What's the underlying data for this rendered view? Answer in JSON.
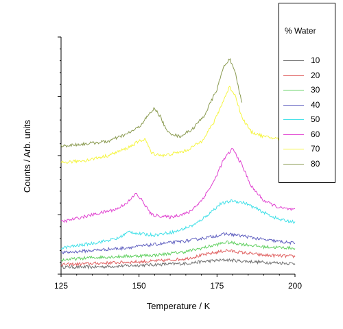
{
  "chart_data": {
    "type": "line",
    "xlabel": "Temperature / K",
    "ylabel": "Counts / Arb. units",
    "xlim": [
      125,
      200
    ],
    "ylim": [
      0,
      100
    ],
    "xticks": [
      125,
      150,
      175,
      200
    ],
    "grid": false,
    "legend": {
      "title": "% Water",
      "placement": "top-right"
    },
    "series": [
      {
        "name": "10",
        "color": "#707070",
        "x_end": 200,
        "points": [
          [
            125,
            3
          ],
          [
            135,
            3
          ],
          [
            145,
            3.5
          ],
          [
            155,
            4
          ],
          [
            165,
            4.5
          ],
          [
            172,
            5.5
          ],
          [
            178,
            6
          ],
          [
            183,
            5.5
          ],
          [
            190,
            5
          ],
          [
            200,
            4.5
          ]
        ]
      },
      {
        "name": "20",
        "color": "#e06060",
        "x_end": 200,
        "points": [
          [
            125,
            4
          ],
          [
            135,
            4.5
          ],
          [
            145,
            5
          ],
          [
            155,
            5.5
          ],
          [
            165,
            6.5
          ],
          [
            172,
            8.5
          ],
          [
            178,
            10
          ],
          [
            184,
            9
          ],
          [
            190,
            8
          ],
          [
            200,
            7.5
          ]
        ]
      },
      {
        "name": "30",
        "color": "#60d060",
        "x_end": 200,
        "points": [
          [
            125,
            6
          ],
          [
            135,
            7
          ],
          [
            145,
            7.5
          ],
          [
            155,
            8
          ],
          [
            165,
            9.5
          ],
          [
            172,
            11.5
          ],
          [
            178,
            13.5
          ],
          [
            184,
            12.5
          ],
          [
            190,
            11.5
          ],
          [
            200,
            11
          ]
        ]
      },
      {
        "name": "40",
        "color": "#6060c0",
        "x_end": 200,
        "points": [
          [
            125,
            9
          ],
          [
            135,
            10
          ],
          [
            145,
            11
          ],
          [
            155,
            12.5
          ],
          [
            165,
            14
          ],
          [
            172,
            15.5
          ],
          [
            178,
            17
          ],
          [
            184,
            16
          ],
          [
            190,
            14.5
          ],
          [
            200,
            13
          ]
        ]
      },
      {
        "name": "50",
        "color": "#40e0e8",
        "x_end": 200,
        "points": [
          [
            125,
            11
          ],
          [
            135,
            13
          ],
          [
            143,
            15
          ],
          [
            147,
            18
          ],
          [
            150,
            17
          ],
          [
            155,
            16.5
          ],
          [
            162,
            18
          ],
          [
            168,
            21
          ],
          [
            172,
            25
          ],
          [
            176,
            29.5
          ],
          [
            180,
            31
          ],
          [
            184,
            30
          ],
          [
            190,
            26
          ],
          [
            195,
            23
          ],
          [
            200,
            22
          ]
        ]
      },
      {
        "name": "60",
        "color": "#e040d0",
        "x_end": 200,
        "points": [
          [
            125,
            22
          ],
          [
            135,
            25
          ],
          [
            143,
            27.5
          ],
          [
            147,
            31
          ],
          [
            149,
            34
          ],
          [
            151,
            31
          ],
          [
            154,
            25
          ],
          [
            160,
            24
          ],
          [
            166,
            26
          ],
          [
            170,
            31
          ],
          [
            174,
            39
          ],
          [
            177,
            48
          ],
          [
            180,
            53
          ],
          [
            183,
            46
          ],
          [
            186,
            37
          ],
          [
            190,
            31
          ],
          [
            195,
            28
          ],
          [
            200,
            27
          ]
        ]
      },
      {
        "name": "70",
        "color": "#f5f540",
        "x_end": 195,
        "points": [
          [
            125,
            47
          ],
          [
            133,
            48
          ],
          [
            140,
            50
          ],
          [
            146,
            53
          ],
          [
            150,
            56
          ],
          [
            152,
            57
          ],
          [
            154,
            51
          ],
          [
            158,
            50
          ],
          [
            165,
            52
          ],
          [
            170,
            56
          ],
          [
            174,
            64
          ],
          [
            177,
            73
          ],
          [
            179,
            79
          ],
          [
            181,
            75
          ],
          [
            183,
            66
          ],
          [
            186,
            60
          ],
          [
            190,
            58
          ],
          [
            195,
            57
          ]
        ]
      },
      {
        "name": "80",
        "color": "#8a9a50",
        "x_end": 183,
        "points": [
          [
            125,
            54
          ],
          [
            133,
            55
          ],
          [
            140,
            56
          ],
          [
            146,
            59
          ],
          [
            150,
            62
          ],
          [
            153,
            67
          ],
          [
            155,
            70
          ],
          [
            157,
            66
          ],
          [
            159,
            60
          ],
          [
            163,
            58
          ],
          [
            167,
            61
          ],
          [
            171,
            67
          ],
          [
            175,
            78
          ],
          [
            177,
            87
          ],
          [
            179,
            91
          ],
          [
            181,
            84
          ],
          [
            183,
            72
          ]
        ]
      }
    ]
  }
}
